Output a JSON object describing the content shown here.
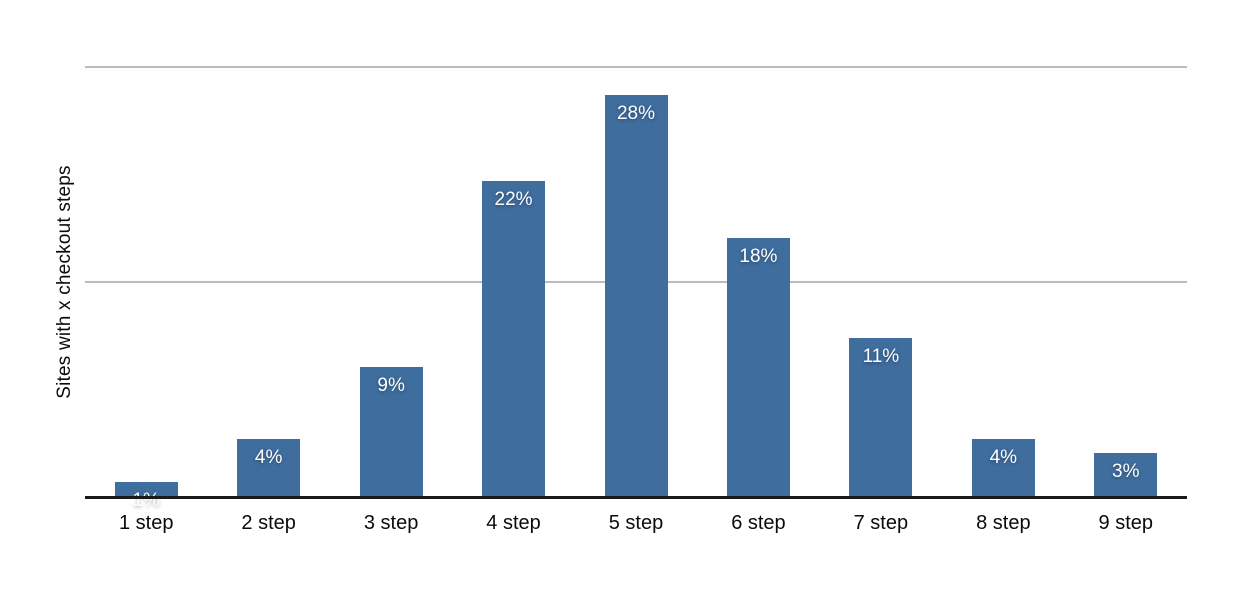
{
  "chart_data": {
    "type": "bar",
    "title": "",
    "xlabel": "",
    "ylabel": "Sites with x checkout steps",
    "categories": [
      "1 step",
      "2 step",
      "3 step",
      "4 step",
      "5 step",
      "6 step",
      "7 step",
      "8 step",
      "9 step"
    ],
    "values": [
      1,
      4,
      9,
      22,
      28,
      18,
      11,
      4,
      3
    ],
    "bar_labels": [
      "1%",
      "4%",
      "9%",
      "22%",
      "28%",
      "18%",
      "11%",
      "4%",
      "3%"
    ],
    "ylim": [
      0,
      30
    ],
    "gridline_values": [
      15,
      30
    ],
    "grid": "horizontal",
    "legend": "none",
    "y_tick_labels": "none",
    "colors": {
      "bar": "#3e6d9e",
      "bar_label": "#ffffff",
      "gridline": "#bcbcbc",
      "axis": "#1a1a1a",
      "tick_label": "#0b0b0b"
    }
  }
}
